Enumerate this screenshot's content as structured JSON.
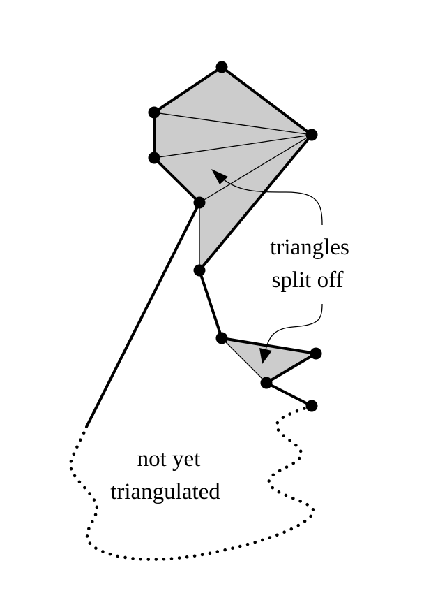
{
  "labels": {
    "triangles_line1": "triangles",
    "triangles_line2": "split off",
    "untriangulated_line1": "not yet",
    "untriangulated_line2": "triangulated"
  },
  "colors": {
    "fill": "#cccccc",
    "stroke": "#000000",
    "background": "#ffffff"
  }
}
